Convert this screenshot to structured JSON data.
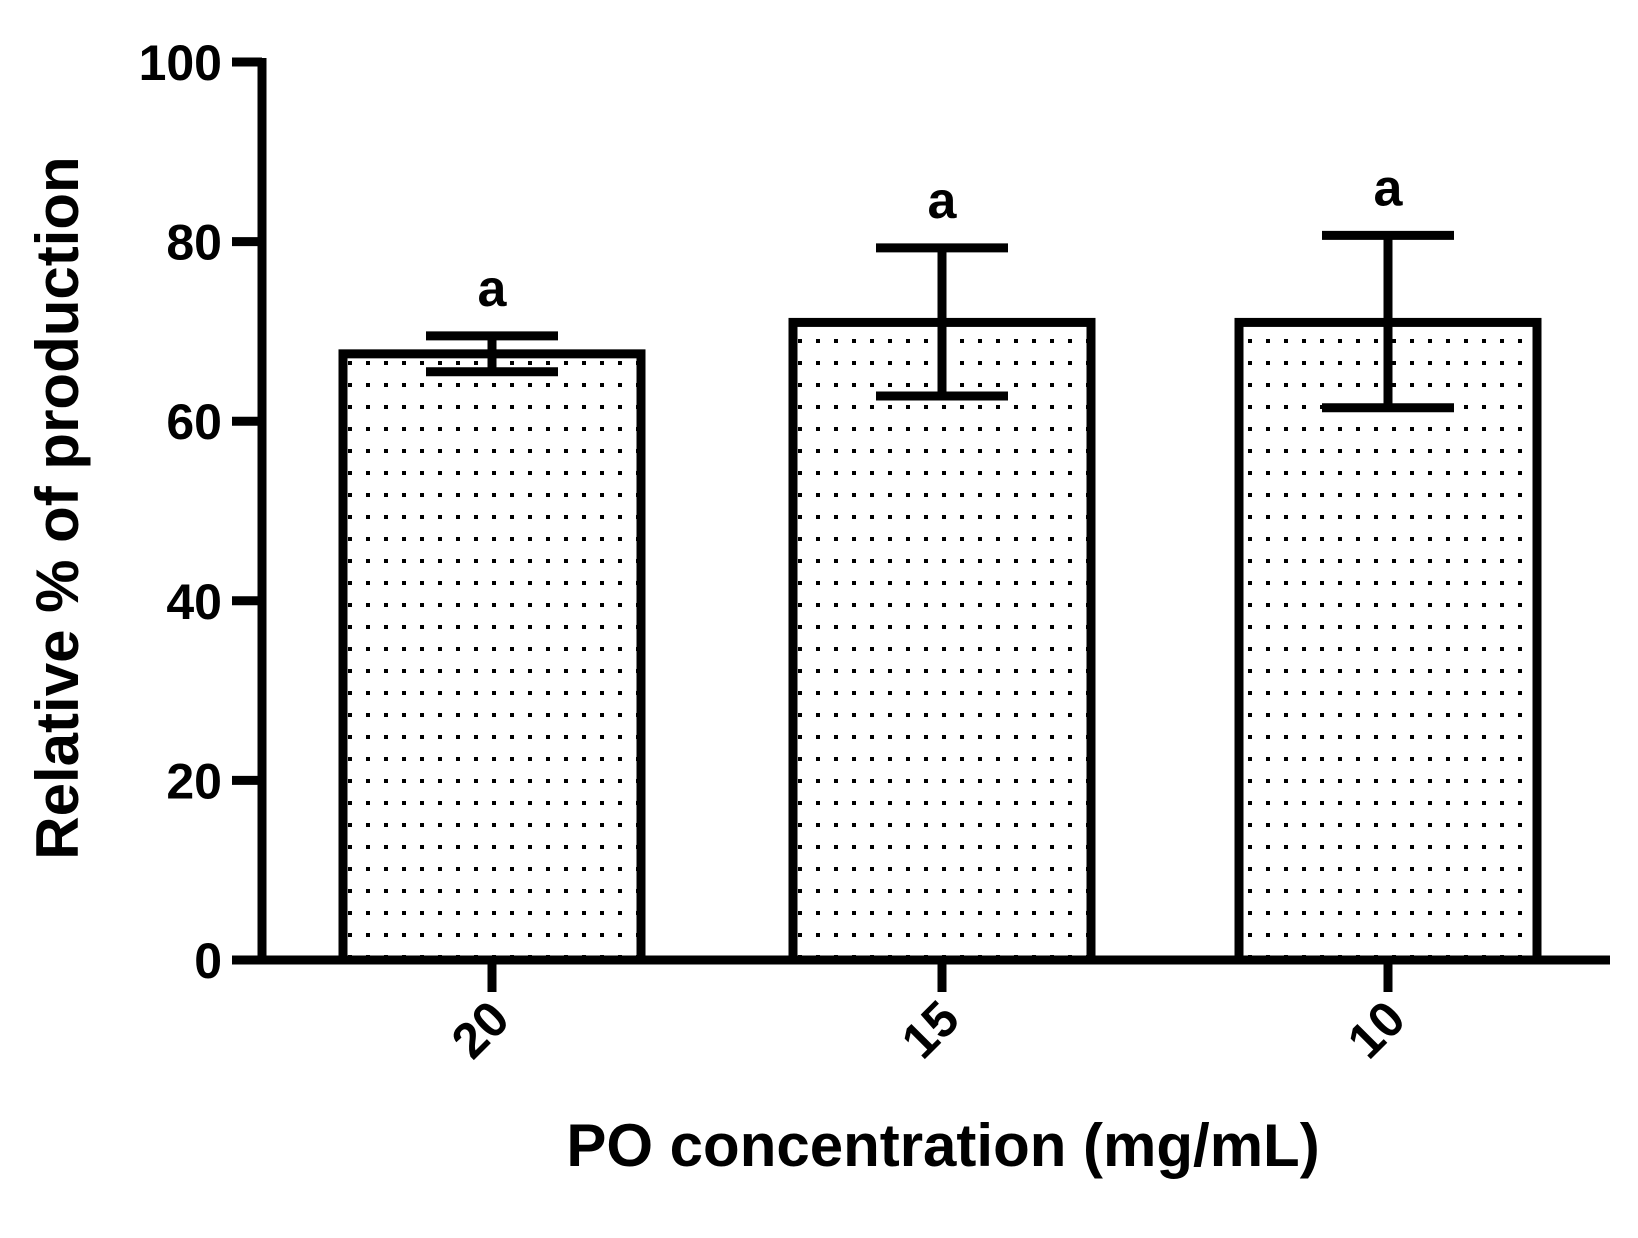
{
  "chart_data": {
    "type": "bar",
    "title": "",
    "xlabel": "PO concentration (mg/mL)",
    "ylabel": "Relative % of production",
    "categories": [
      "20",
      "15",
      "10"
    ],
    "values": [
      67.5,
      71.0,
      71.0
    ],
    "error_upper": [
      69.5,
      79.3,
      80.7
    ],
    "error_lower": [
      65.5,
      62.8,
      61.5
    ],
    "annotations": [
      "a",
      "a",
      "a"
    ],
    "ylim": [
      0,
      100
    ],
    "yticks": [
      0,
      20,
      40,
      60,
      80,
      100
    ],
    "ytick_labels": [
      "0",
      "20",
      "40",
      "60",
      "80",
      "100"
    ],
    "grid": false,
    "bar_fill": "dotted",
    "colors": {
      "axis": "#000000",
      "bar_edge": "#000000",
      "bar_fill": "#ffffff",
      "dot": "#000000"
    }
  }
}
